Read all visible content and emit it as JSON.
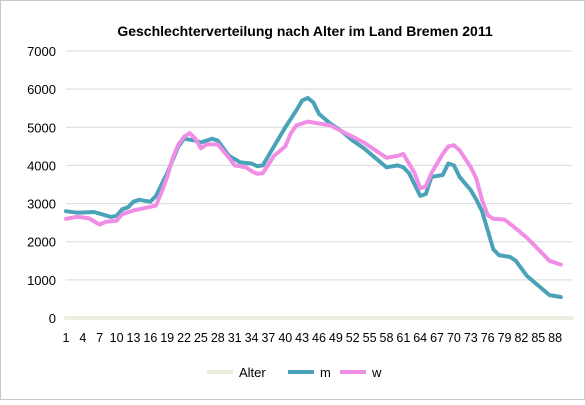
{
  "chart_data": {
    "type": "line",
    "title": "Geschlechterverteilung nach Alter im Land Bremen 2011",
    "xlabel": "",
    "ylabel": "",
    "ylim": [
      0,
      7000
    ],
    "yticks": [
      "0",
      "1000",
      "2000",
      "3000",
      "4000",
      "5000",
      "6000",
      "7000"
    ],
    "x_tick_labels": [
      "1",
      "4",
      "7",
      "10",
      "13",
      "16",
      "19",
      "22",
      "25",
      "28",
      "31",
      "34",
      "37",
      "40",
      "43",
      "46",
      "49",
      "52",
      "55",
      "58",
      "61",
      "64",
      "67",
      "70",
      "73",
      "76",
      "79",
      "82",
      "85",
      "88"
    ],
    "x_tick_values": [
      1,
      4,
      7,
      10,
      13,
      16,
      19,
      22,
      25,
      28,
      31,
      34,
      37,
      40,
      43,
      46,
      49,
      52,
      55,
      58,
      61,
      64,
      67,
      70,
      73,
      76,
      79,
      82,
      85,
      88
    ],
    "x_range": [
      1,
      91
    ],
    "grid": "horizontal",
    "legend_position": "bottom",
    "series": [
      {
        "name": "Alter",
        "color": "#eeeee0",
        "points": [
          [
            1,
            0
          ],
          [
            91,
            0
          ]
        ]
      },
      {
        "name": "m",
        "color": "#4aa3b8",
        "points": [
          [
            1,
            2800
          ],
          [
            3,
            2760
          ],
          [
            6,
            2780
          ],
          [
            9,
            2650
          ],
          [
            10,
            2680
          ],
          [
            11,
            2850
          ],
          [
            12,
            2900
          ],
          [
            13,
            3050
          ],
          [
            14,
            3100
          ],
          [
            16,
            3050
          ],
          [
            17,
            3200
          ],
          [
            19,
            3800
          ],
          [
            21,
            4500
          ],
          [
            22,
            4700
          ],
          [
            24,
            4650
          ],
          [
            25,
            4600
          ],
          [
            27,
            4700
          ],
          [
            28,
            4650
          ],
          [
            30,
            4250
          ],
          [
            32,
            4080
          ],
          [
            34,
            4050
          ],
          [
            35,
            3980
          ],
          [
            36,
            4000
          ],
          [
            38,
            4500
          ],
          [
            40,
            5000
          ],
          [
            42,
            5450
          ],
          [
            43,
            5700
          ],
          [
            44,
            5770
          ],
          [
            45,
            5650
          ],
          [
            46,
            5350
          ],
          [
            48,
            5100
          ],
          [
            50,
            4900
          ],
          [
            52,
            4650
          ],
          [
            54,
            4450
          ],
          [
            56,
            4200
          ],
          [
            58,
            3950
          ],
          [
            60,
            4000
          ],
          [
            61,
            3950
          ],
          [
            62,
            3800
          ],
          [
            64,
            3200
          ],
          [
            65,
            3250
          ],
          [
            66,
            3700
          ],
          [
            68,
            3750
          ],
          [
            69,
            4050
          ],
          [
            70,
            4000
          ],
          [
            71,
            3700
          ],
          [
            73,
            3350
          ],
          [
            74,
            3100
          ],
          [
            75,
            2800
          ],
          [
            76,
            2300
          ],
          [
            77,
            1800
          ],
          [
            78,
            1650
          ],
          [
            80,
            1600
          ],
          [
            81,
            1500
          ],
          [
            83,
            1100
          ],
          [
            85,
            850
          ],
          [
            87,
            600
          ],
          [
            89,
            550
          ]
        ]
      },
      {
        "name": "w",
        "color": "#f08ee6",
        "points": [
          [
            1,
            2600
          ],
          [
            3,
            2650
          ],
          [
            5,
            2620
          ],
          [
            7,
            2450
          ],
          [
            8,
            2520
          ],
          [
            10,
            2550
          ],
          [
            11,
            2720
          ],
          [
            13,
            2820
          ],
          [
            15,
            2880
          ],
          [
            17,
            2950
          ],
          [
            18,
            3300
          ],
          [
            19,
            3700
          ],
          [
            20,
            4200
          ],
          [
            21,
            4550
          ],
          [
            22,
            4750
          ],
          [
            23,
            4850
          ],
          [
            24,
            4700
          ],
          [
            25,
            4450
          ],
          [
            26,
            4550
          ],
          [
            28,
            4550
          ],
          [
            30,
            4200
          ],
          [
            31,
            4000
          ],
          [
            33,
            3950
          ],
          [
            34,
            3850
          ],
          [
            35,
            3780
          ],
          [
            36,
            3800
          ],
          [
            38,
            4250
          ],
          [
            40,
            4500
          ],
          [
            41,
            4850
          ],
          [
            42,
            5050
          ],
          [
            44,
            5150
          ],
          [
            46,
            5100
          ],
          [
            48,
            5050
          ],
          [
            50,
            4900
          ],
          [
            52,
            4750
          ],
          [
            54,
            4600
          ],
          [
            56,
            4400
          ],
          [
            58,
            4200
          ],
          [
            60,
            4250
          ],
          [
            61,
            4300
          ],
          [
            62,
            4050
          ],
          [
            63,
            3800
          ],
          [
            64,
            3400
          ],
          [
            65,
            3450
          ],
          [
            66,
            3800
          ],
          [
            68,
            4300
          ],
          [
            69,
            4500
          ],
          [
            70,
            4530
          ],
          [
            71,
            4400
          ],
          [
            73,
            3950
          ],
          [
            74,
            3650
          ],
          [
            75,
            3100
          ],
          [
            76,
            2700
          ],
          [
            77,
            2600
          ],
          [
            79,
            2580
          ],
          [
            81,
            2350
          ],
          [
            83,
            2100
          ],
          [
            85,
            1800
          ],
          [
            87,
            1500
          ],
          [
            89,
            1400
          ]
        ]
      }
    ]
  }
}
